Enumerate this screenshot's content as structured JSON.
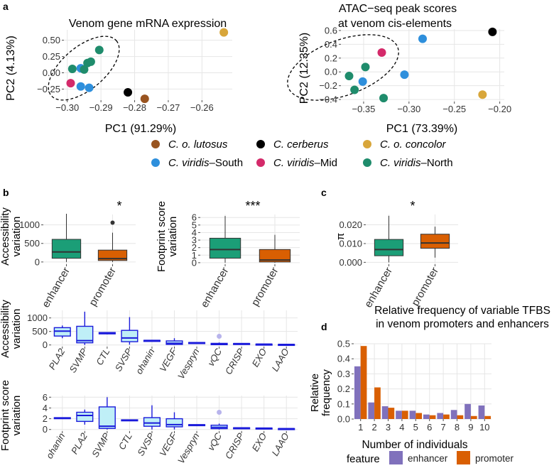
{
  "panel_labels": {
    "a": "a",
    "b": "b",
    "c": "c",
    "d": "d"
  },
  "colors": {
    "lutosus": "#995420",
    "cerberus": "#000000",
    "concolor": "#d8a63a",
    "viridis_south": "#2e8fdc",
    "viridis_mid": "#d42a6a",
    "viridis_north": "#1f8c6c",
    "enhancer": "#1b9e77",
    "promoter": "#d95f02",
    "tfbs_enhancer": "#8071bc",
    "tfbs_promoter": "#d95f02",
    "box_blue": "#1a1adb",
    "box_fill": "#bfeff7"
  },
  "legend_a": {
    "items": [
      {
        "key": "lutosus",
        "italic": "C. o. lutosus",
        "suffix": ""
      },
      {
        "key": "cerberus",
        "italic": "C. cerberus",
        "suffix": ""
      },
      {
        "key": "concolor",
        "italic": "C. o. concolor",
        "suffix": ""
      },
      {
        "key": "viridis_south",
        "italic": "C. viridis",
        "suffix": "–South"
      },
      {
        "key": "viridis_mid",
        "italic": "C. viridis",
        "suffix": "–Mid"
      },
      {
        "key": "viridis_north",
        "italic": "C. viridis",
        "suffix": "–North"
      }
    ]
  },
  "chart_data": [
    {
      "id": "pca_mrna",
      "type": "scatter",
      "title": "Venom gene mRNA expression",
      "xlabel": "PC1 (91.29%)",
      "ylabel": "PC2 (4.13%)",
      "xlim": [
        -0.301,
        -0.251
      ],
      "ylim": [
        -0.42,
        0.66
      ],
      "xticks": [
        -0.3,
        -0.29,
        -0.28,
        -0.27,
        -0.26
      ],
      "xtick_labels": [
        "−0.30",
        "−0.29",
        "−0.28",
        "−0.27",
        "−0.26"
      ],
      "yticks": [
        -0.25,
        0.0,
        0.25,
        0.5
      ],
      "ytick_labels": [
        "−0.25",
        "0.00",
        "0.25",
        "0.50"
      ],
      "points": [
        {
          "x": -0.2535,
          "y": 0.62,
          "group": "concolor"
        },
        {
          "x": -0.282,
          "y": -0.3,
          "group": "cerberus"
        },
        {
          "x": -0.277,
          "y": -0.4,
          "group": "lutosus"
        },
        {
          "x": -0.299,
          "y": -0.16,
          "group": "viridis_mid"
        },
        {
          "x": -0.296,
          "y": -0.21,
          "group": "viridis_south"
        },
        {
          "x": -0.2935,
          "y": -0.23,
          "group": "viridis_south"
        },
        {
          "x": -0.296,
          "y": 0.07,
          "group": "viridis_south"
        },
        {
          "x": -0.2985,
          "y": 0.06,
          "group": "viridis_north"
        },
        {
          "x": -0.295,
          "y": 0.05,
          "group": "viridis_north"
        },
        {
          "x": -0.294,
          "y": 0.15,
          "group": "viridis_north"
        },
        {
          "x": -0.293,
          "y": 0.17,
          "group": "viridis_north"
        },
        {
          "x": -0.2905,
          "y": 0.35,
          "group": "viridis_north"
        }
      ]
    },
    {
      "id": "pca_atac",
      "type": "scatter",
      "title": "ATAC−seq peak scores",
      "title_line2": "at venom cis-elements",
      "xlabel": "PC1 (73.39%)",
      "ylabel": "PC2 (12.35%)",
      "xlim": [
        -0.375,
        -0.195
      ],
      "ylim": [
        -0.43,
        0.62
      ],
      "xticks": [
        -0.35,
        -0.3,
        -0.25,
        -0.2
      ],
      "xtick_labels": [
        "−0.35",
        "−0.30",
        "−0.25",
        "−0.20"
      ],
      "yticks": [
        -0.4,
        -0.2,
        0.0,
        0.2,
        0.4,
        0.6
      ],
      "ytick_labels": [
        "−0.4",
        "−0.2",
        "0.0",
        "0.2",
        "0.4",
        "0.6"
      ],
      "points": [
        {
          "x": -0.208,
          "y": 0.58,
          "group": "cerberus"
        },
        {
          "x": -0.219,
          "y": -0.33,
          "group": "concolor"
        },
        {
          "x": -0.285,
          "y": 0.48,
          "group": "viridis_south"
        },
        {
          "x": -0.305,
          "y": -0.04,
          "group": "viridis_south"
        },
        {
          "x": -0.351,
          "y": -0.14,
          "group": "viridis_south"
        },
        {
          "x": -0.33,
          "y": 0.28,
          "group": "viridis_mid"
        },
        {
          "x": -0.366,
          "y": -0.06,
          "group": "viridis_north"
        },
        {
          "x": -0.348,
          "y": 0.07,
          "group": "viridis_north"
        },
        {
          "x": -0.36,
          "y": -0.26,
          "group": "viridis_north"
        },
        {
          "x": -0.328,
          "y": -0.38,
          "group": "viridis_north"
        }
      ]
    },
    {
      "id": "acc_var_feature",
      "type": "box",
      "ylabel": "Accessibility\nvariation",
      "significance": "*",
      "ylim": [
        -60,
        1280
      ],
      "yticks": [
        0,
        500,
        1000
      ],
      "ytick_labels": [
        "0",
        "500",
        "1000"
      ],
      "categories": [
        "enhancer",
        "promoter"
      ],
      "boxes": [
        {
          "cat": "enhancer",
          "whislo": 0,
          "q1": 100,
          "med": 270,
          "q3": 610,
          "whishi": 1300,
          "color": "enhancer",
          "outliers": []
        },
        {
          "cat": "promoter",
          "whislo": 0,
          "q1": 40,
          "med": 90,
          "q3": 320,
          "whishi": 790,
          "color": "promoter",
          "outliers": [
            1060
          ]
        }
      ]
    },
    {
      "id": "fp_var_feature",
      "type": "box",
      "ylabel": "Footprint score\nvariation",
      "significance": "***",
      "ylim": [
        -0.2,
        6.4
      ],
      "yticks": [
        0,
        1,
        2,
        3,
        4,
        5,
        6
      ],
      "ytick_labels": [
        "0",
        "1",
        "2",
        "3",
        "4",
        "5",
        "6"
      ],
      "categories": [
        "enhancer",
        "promoter"
      ],
      "boxes": [
        {
          "cat": "enhancer",
          "whislo": 0,
          "q1": 0.6,
          "med": 1.75,
          "q3": 3.25,
          "whishi": 6.2,
          "color": "enhancer",
          "outliers": []
        },
        {
          "cat": "promoter",
          "whislo": 0,
          "q1": 0.1,
          "med": 0.35,
          "q3": 1.75,
          "whishi": 3.7,
          "color": "promoter",
          "outliers": []
        }
      ]
    },
    {
      "id": "pi_feature",
      "type": "box",
      "ylabel": "π",
      "significance": "*",
      "ylim": [
        -0.001,
        0.0255
      ],
      "yticks": [
        0,
        0.01,
        0.02
      ],
      "ytick_labels": [
        "0.000",
        "0.010",
        "0.020"
      ],
      "categories": [
        "enhancer",
        "promoter"
      ],
      "boxes": [
        {
          "cat": "enhancer",
          "whislo": 0.0,
          "q1": 0.0035,
          "med": 0.0068,
          "q3": 0.0122,
          "whishi": 0.0248,
          "color": "enhancer",
          "outliers": []
        },
        {
          "cat": "promoter",
          "whislo": 0.0025,
          "q1": 0.0075,
          "med": 0.0103,
          "q3": 0.015,
          "whishi": 0.019,
          "color": "promoter",
          "outliers": []
        }
      ]
    },
    {
      "id": "acc_var_family",
      "type": "box",
      "ylabel": "Accessibility\nvariation",
      "ylim": [
        -60,
        1280
      ],
      "yticks": [
        0,
        500,
        1000
      ],
      "ytick_labels": [
        "0",
        "500",
        "1000"
      ],
      "categories": [
        "PLA2",
        "SVMP",
        "CTL",
        "SVSP",
        "ohanin",
        "VEGF",
        "Vespryn",
        "vQC",
        "CRISP",
        "EXO",
        "LAAO"
      ],
      "category_italic": [
        true,
        true,
        true,
        true,
        true,
        true,
        true,
        true,
        true,
        true,
        true
      ],
      "boxes": [
        {
          "cat": "PLA2",
          "whislo": 250,
          "q1": 330,
          "med": 510,
          "q3": 640,
          "whishi": 720,
          "outliers": []
        },
        {
          "cat": "SVMP",
          "whislo": 0,
          "q1": 80,
          "med": 160,
          "q3": 690,
          "whishi": 1230,
          "outliers": []
        },
        {
          "cat": "CTL",
          "whislo": 395,
          "q1": 410,
          "med": 440,
          "q3": 460,
          "whishi": 470,
          "outliers": []
        },
        {
          "cat": "SVSP",
          "whislo": 10,
          "q1": 120,
          "med": 260,
          "q3": 540,
          "whishi": 1030,
          "outliers": []
        },
        {
          "cat": "ohanin",
          "whislo": 155,
          "q1": 160,
          "med": 165,
          "q3": 170,
          "whishi": 175,
          "outliers": []
        },
        {
          "cat": "VEGF",
          "whislo": 0,
          "q1": 20,
          "med": 60,
          "q3": 150,
          "whishi": 250,
          "outliers": []
        },
        {
          "cat": "Vespryn",
          "whislo": 75,
          "q1": 80,
          "med": 85,
          "q3": 90,
          "whishi": 95,
          "outliers": []
        },
        {
          "cat": "vQC",
          "whislo": 0,
          "q1": 10,
          "med": 30,
          "q3": 60,
          "whishi": 90,
          "outliers": [
            320
          ]
        },
        {
          "cat": "CRISP",
          "whislo": 40,
          "q1": 45,
          "med": 50,
          "q3": 55,
          "whishi": 60,
          "outliers": []
        },
        {
          "cat": "EXO",
          "whislo": 25,
          "q1": 28,
          "med": 30,
          "q3": 32,
          "whishi": 35,
          "outliers": []
        },
        {
          "cat": "LAAO",
          "whislo": 15,
          "q1": 18,
          "med": 20,
          "q3": 22,
          "whishi": 25,
          "outliers": []
        }
      ]
    },
    {
      "id": "fp_var_family",
      "type": "box",
      "ylabel": "Footprint score\nvariation",
      "ylim": [
        -0.3,
        6.3
      ],
      "yticks": [
        0,
        2,
        4,
        6
      ],
      "ytick_labels": [
        "0",
        "2",
        "4",
        "6"
      ],
      "categories": [
        "ohanin",
        "PLA2",
        "SVMP",
        "CTL",
        "SVSP",
        "VEGF",
        "Vespryn",
        "vQC",
        "CRISP",
        "EXO",
        "LAAO"
      ],
      "boxes": [
        {
          "cat": "ohanin",
          "whislo": 2.05,
          "q1": 2.1,
          "med": 2.15,
          "q3": 2.2,
          "whishi": 2.25,
          "outliers": []
        },
        {
          "cat": "PLA2",
          "whislo": 0.9,
          "q1": 1.5,
          "med": 2.6,
          "q3": 3.2,
          "whishi": 3.7,
          "outliers": []
        },
        {
          "cat": "SVMP",
          "whislo": 0,
          "q1": 0.2,
          "med": 0.6,
          "q3": 4.2,
          "whishi": 6.0,
          "outliers": []
        },
        {
          "cat": "CTL",
          "whislo": 1.65,
          "q1": 1.7,
          "med": 1.75,
          "q3": 1.8,
          "whishi": 1.85,
          "outliers": []
        },
        {
          "cat": "SVSP",
          "whislo": 0,
          "q1": 0.6,
          "med": 1.2,
          "q3": 2.2,
          "whishi": 4.5,
          "outliers": []
        },
        {
          "cat": "VEGF",
          "whislo": 0,
          "q1": 0.5,
          "med": 0.9,
          "q3": 2.0,
          "whishi": 3.2,
          "outliers": []
        },
        {
          "cat": "Vespryn",
          "whislo": 0.75,
          "q1": 0.8,
          "med": 0.85,
          "q3": 0.9,
          "whishi": 0.95,
          "outliers": []
        },
        {
          "cat": "vQC",
          "whislo": 0,
          "q1": 0.15,
          "med": 0.4,
          "q3": 0.8,
          "whishi": 1.1,
          "outliers": [
            3.2
          ]
        },
        {
          "cat": "CRISP",
          "whislo": 0.25,
          "q1": 0.28,
          "med": 0.3,
          "q3": 0.32,
          "whishi": 0.35,
          "outliers": []
        },
        {
          "cat": "EXO",
          "whislo": 0.2,
          "q1": 0.22,
          "med": 0.25,
          "q3": 0.27,
          "whishi": 0.3,
          "outliers": []
        },
        {
          "cat": "LAAO",
          "whislo": 0.1,
          "q1": 0.12,
          "med": 0.15,
          "q3": 0.17,
          "whishi": 0.2,
          "outliers": []
        }
      ]
    },
    {
      "id": "tfbs_freq",
      "type": "bar",
      "title": "Relative frequency of variable TFBS",
      "title_line2": "in venom promoters and enhancers",
      "xlabel": "Number of individuals",
      "ylabel": "Relative\nfrequency",
      "ylim": [
        0,
        0.5
      ],
      "yticks": [
        0,
        0.1,
        0.2,
        0.3,
        0.4,
        0.5
      ],
      "ytick_labels": [
        "0.0",
        "0.1",
        "0.2",
        "0.3",
        "0.4",
        "0.5"
      ],
      "categories": [
        "1",
        "2",
        "3",
        "4",
        "5",
        "6",
        "7",
        "8",
        "9",
        "10"
      ],
      "series": [
        {
          "name": "enhancer",
          "color": "tfbs_enhancer",
          "values": [
            0.35,
            0.11,
            0.085,
            0.055,
            0.055,
            0.03,
            0.04,
            0.06,
            0.1,
            0.09
          ]
        },
        {
          "name": "promoter",
          "color": "tfbs_promoter",
          "values": [
            0.485,
            0.21,
            0.075,
            0.055,
            0.04,
            0.025,
            0.03,
            0.025,
            0.02,
            0.02
          ]
        }
      ],
      "legend_title": "feature"
    }
  ]
}
